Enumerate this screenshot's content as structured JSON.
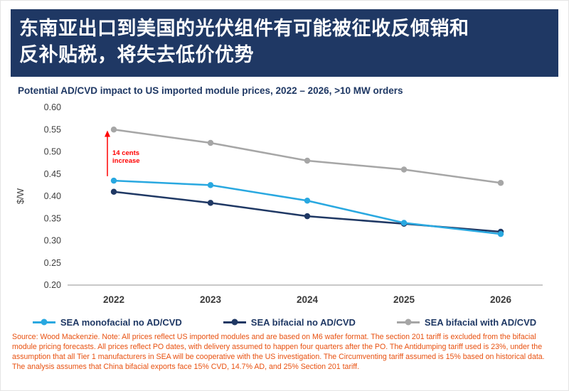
{
  "header": {
    "title_lines": [
      "东南亚出口到美国的光伏组件有可能被征收反倾销和",
      "反补贴税，将失去低价优势"
    ],
    "bg_color": "#1F3864"
  },
  "subtitle": "Potential AD/CVD impact to US imported module prices, 2022 – 2026, >10 MW orders",
  "chart_data": {
    "type": "line",
    "title": "Potential AD/CVD impact to US imported module prices, 2022 – 2026, >10 MW orders",
    "xlabel": "",
    "ylabel": "$/W",
    "ylim": [
      0.2,
      0.6
    ],
    "yticks": [
      0.6,
      0.55,
      0.5,
      0.45,
      0.4,
      0.35,
      0.3,
      0.25,
      0.2
    ],
    "categories": [
      "2022",
      "2023",
      "2024",
      "2025",
      "2026"
    ],
    "series": [
      {
        "name": "SEA monofacial no AD/CVD",
        "color": "#29A8E0",
        "values": [
          0.435,
          0.425,
          0.39,
          0.34,
          0.315
        ]
      },
      {
        "name": "SEA bifacial no AD/CVD",
        "color": "#1F3864",
        "values": [
          0.41,
          0.385,
          0.355,
          0.338,
          0.32
        ]
      },
      {
        "name": "SEA bifacial with AD/CVD",
        "color": "#A6A6A6",
        "values": [
          0.55,
          0.52,
          0.48,
          0.46,
          0.43
        ]
      }
    ],
    "annotation": {
      "lines": [
        "14 cents",
        "increase"
      ],
      "color": "#FF0000",
      "from": 0.445,
      "to": 0.548
    },
    "grid": false,
    "legend_position": "bottom"
  },
  "source_note": "Source: Wood Mackenzie. Note: All prices reflect US imported modules and are based on M6 wafer format. The section 201 tariff is excluded from the bifacial module pricing forecasts. All prices reflect PO dates, with delivery assumed to happen four quarters after the PO. The Antidumping tariff used is 23%, under the assumption that all Tier 1 manufacturers in SEA will be cooperative with the US investigation. The Circumventing tariff assumed is 15% based on historical data. The analysis assumes that China bifacial exports face 15% CVD, 14.7% AD, and 25% Section 201 tariff."
}
